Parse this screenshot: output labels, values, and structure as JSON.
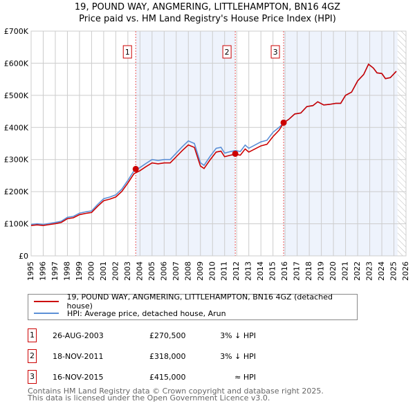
{
  "title": "19, POUND WAY, ANGMERING, LITTLEHAMPTON, BN16 4GZ",
  "subtitle": "Price paid vs. HM Land Registry's House Price Index (HPI)",
  "chart_data": {
    "type": "line",
    "xlim": [
      1995,
      2026
    ],
    "ylim": [
      0,
      700000
    ],
    "xticks": [
      "1995",
      "1996",
      "1997",
      "1998",
      "1999",
      "2000",
      "2001",
      "2002",
      "2003",
      "2004",
      "2005",
      "2006",
      "2007",
      "2008",
      "2009",
      "2010",
      "2011",
      "2012",
      "2013",
      "2014",
      "2015",
      "2016",
      "2017",
      "2018",
      "2019",
      "2020",
      "2021",
      "2022",
      "2023",
      "2024",
      "2025",
      "2026"
    ],
    "yticks": [
      {
        "v": 0,
        "l": "£0"
      },
      {
        "v": 100000,
        "l": "£100K"
      },
      {
        "v": 200000,
        "l": "£200K"
      },
      {
        "v": 300000,
        "l": "£300K"
      },
      {
        "v": 400000,
        "l": "£400K"
      },
      {
        "v": 500000,
        "l": "£500K"
      },
      {
        "v": 600000,
        "l": "£600K"
      },
      {
        "v": 700000,
        "l": "£700K"
      }
    ],
    "hpi_series": {
      "name": "HPI: Average price, detached house, Arun",
      "color": "#5b8fd6",
      "x": [
        1995,
        1995.5,
        1996,
        1996.5,
        1997,
        1997.5,
        1998,
        1998.5,
        1999,
        1999.5,
        2000,
        2000.5,
        2001,
        2001.5,
        2002,
        2002.5,
        2003,
        2003.5,
        2004,
        2004.5,
        2005,
        2005.5,
        2006,
        2006.5,
        2007,
        2007.5,
        2008,
        2008.5,
        2009,
        2009.3,
        2009.8,
        2010.3,
        2010.7,
        2011,
        2011.5,
        2011.9,
        2012.3,
        2012.7,
        2013,
        2013.5,
        2014,
        2014.5,
        2015,
        2015.5,
        2015.9,
        2016.3,
        2016.8,
        2017.3,
        2017.8,
        2018.3,
        2018.7,
        2019.2,
        2019.7,
        2020.2,
        2020.6,
        2021,
        2021.5,
        2022,
        2022.5,
        2022.9,
        2023.3,
        2023.6,
        2024,
        2024.3,
        2024.7,
        2025.2
      ],
      "y": [
        98000,
        100000,
        98000,
        101000,
        104000,
        108000,
        120000,
        123000,
        133000,
        137000,
        140000,
        160000,
        178000,
        183000,
        190000,
        208000,
        235000,
        265000,
        275000,
        288000,
        300000,
        297000,
        300000,
        300000,
        320000,
        340000,
        358000,
        350000,
        290000,
        282000,
        310000,
        335000,
        338000,
        320000,
        325000,
        328000,
        325000,
        345000,
        335000,
        345000,
        355000,
        360000,
        385000,
        400000,
        415000,
        425000,
        442000,
        445000,
        465000,
        468000,
        480000,
        470000,
        472000,
        475000,
        475000,
        500000,
        510000,
        545000,
        565000,
        597000,
        585000,
        570000,
        568000,
        552000,
        555000,
        575000
      ]
    },
    "price_series": {
      "name": "19, POUND WAY, ANGMERING, LITTLEHAMPTON, BN16 4GZ (detached house)",
      "color": "#cc0000"
    },
    "sales": [
      {
        "n": "1",
        "x": 2003.65,
        "y": 270500
      },
      {
        "n": "2",
        "x": 2011.88,
        "y": 318000
      },
      {
        "n": "3",
        "x": 2015.88,
        "y": 415000
      }
    ],
    "forecast_start": 2025.3
  },
  "legend": {
    "price": "19, POUND WAY, ANGMERING, LITTLEHAMPTON, BN16 4GZ (detached house)",
    "hpi": "HPI: Average price, detached house, Arun"
  },
  "sales_table": [
    {
      "n": "1",
      "date": "26-AUG-2003",
      "price": "£270,500",
      "rel": "3% ↓ HPI"
    },
    {
      "n": "2",
      "date": "18-NOV-2011",
      "price": "£318,000",
      "rel": "3% ↓ HPI"
    },
    {
      "n": "3",
      "date": "16-NOV-2015",
      "price": "£415,000",
      "rel": "≈ HPI"
    }
  ],
  "footer": [
    "Contains HM Land Registry data © Crown copyright and database right 2025.",
    "This data is licensed under the Open Government Licence v3.0."
  ]
}
